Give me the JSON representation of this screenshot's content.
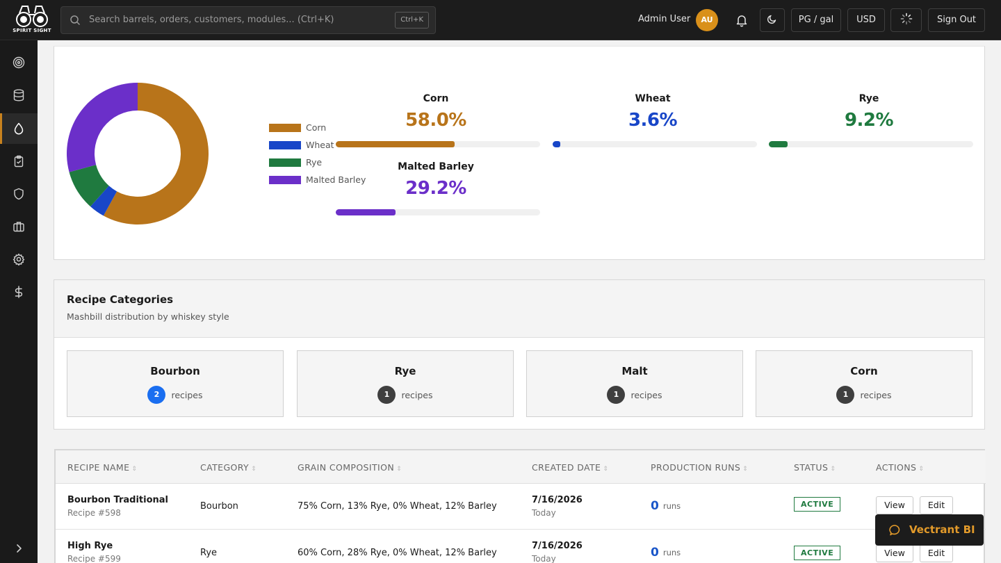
{
  "brand": {
    "logo_text": "SPIRIT SIGHT"
  },
  "topbar": {
    "search_placeholder": "Search barrels, orders, customers, modules... (Ctrl+K)",
    "search_shortcut": "Ctrl+K",
    "user_name": "Admin User",
    "user_initials": "AU",
    "unit_label": "PG / gal",
    "currency_label": "USD",
    "signout_label": "Sign Out"
  },
  "sidebar": {
    "items": [
      {
        "icon": "target-icon"
      },
      {
        "icon": "database-icon"
      },
      {
        "icon": "droplet-icon",
        "active": true
      },
      {
        "icon": "clipboard-icon"
      },
      {
        "icon": "shield-icon"
      },
      {
        "icon": "briefcase-icon"
      },
      {
        "icon": "gear-icon"
      },
      {
        "icon": "dollar-icon"
      }
    ]
  },
  "chart_data": {
    "type": "pie",
    "style": "donut",
    "legend_position": "right",
    "categories": [
      "Corn",
      "Wheat",
      "Rye",
      "Malted Barley"
    ],
    "values": [
      58.0,
      3.6,
      9.2,
      29.2
    ],
    "colors": [
      "#b8741a",
      "#1846c8",
      "#1f7a3f",
      "#6b2fc9"
    ]
  },
  "grain_stats": [
    {
      "name": "Corn",
      "percent_label": "58.0%",
      "percent": 58.0,
      "color": "#b8741a"
    },
    {
      "name": "Wheat",
      "percent_label": "3.6%",
      "percent": 3.6,
      "color": "#1846c8"
    },
    {
      "name": "Rye",
      "percent_label": "9.2%",
      "percent": 9.2,
      "color": "#1f7a3f"
    },
    {
      "name": "Malted Barley",
      "percent_label": "29.2%",
      "percent": 29.2,
      "color": "#6b2fc9"
    }
  ],
  "categories_section": {
    "title": "Recipe Categories",
    "subtitle": "Mashbill distribution by whiskey style",
    "items": [
      {
        "name": "Bourbon",
        "count": "2",
        "unit": "recipes",
        "badge_color": "#1a6ef0"
      },
      {
        "name": "Rye",
        "count": "1",
        "unit": "recipes",
        "badge_color": "#3f3f3f"
      },
      {
        "name": "Malt",
        "count": "1",
        "unit": "recipes",
        "badge_color": "#3f3f3f"
      },
      {
        "name": "Corn",
        "count": "1",
        "unit": "recipes",
        "badge_color": "#3f3f3f"
      }
    ]
  },
  "table": {
    "headers": [
      "RECIPE NAME",
      "CATEGORY",
      "GRAIN COMPOSITION",
      "CREATED DATE",
      "PRODUCTION RUNS",
      "STATUS",
      "ACTIONS"
    ],
    "rows": [
      {
        "name": "Bourbon Traditional",
        "id": "Recipe #598",
        "category": "Bourbon",
        "composition": "75% Corn, 13% Rye, 0% Wheat, 12% Barley",
        "date": "7/16/2026",
        "date_rel": "Today",
        "runs": "0",
        "runs_unit": "runs",
        "status": "ACTIVE",
        "view_label": "View",
        "edit_label": "Edit"
      },
      {
        "name": "High Rye",
        "id": "Recipe #599",
        "category": "Rye",
        "composition": "60% Corn, 28% Rye, 0% Wheat, 12% Barley",
        "date": "7/16/2026",
        "date_rel": "Today",
        "runs": "0",
        "runs_unit": "runs",
        "status": "ACTIVE",
        "view_label": "View",
        "edit_label": "Edit"
      }
    ]
  },
  "chat_widget": {
    "label": "Vectrant BI",
    "color": "#e29a2a"
  }
}
